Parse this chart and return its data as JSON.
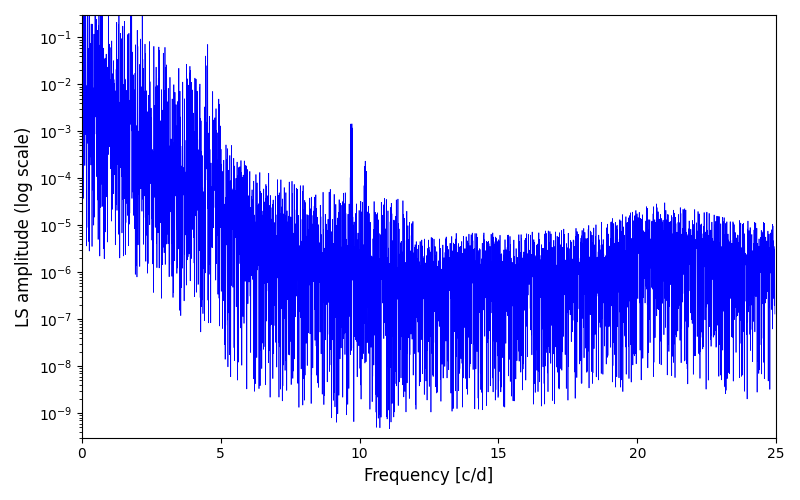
{
  "title": "",
  "xlabel": "Frequency [c/d]",
  "ylabel": "LS amplitude (log scale)",
  "xlim": [
    0,
    25
  ],
  "ylim": [
    3e-10,
    0.3
  ],
  "line_color": "#0000ff",
  "line_width": 0.5,
  "figsize": [
    8.0,
    5.0
  ],
  "dpi": 100,
  "freq_max": 24.95,
  "freq_min": 0.0,
  "n_points": 2500,
  "seed": 17
}
